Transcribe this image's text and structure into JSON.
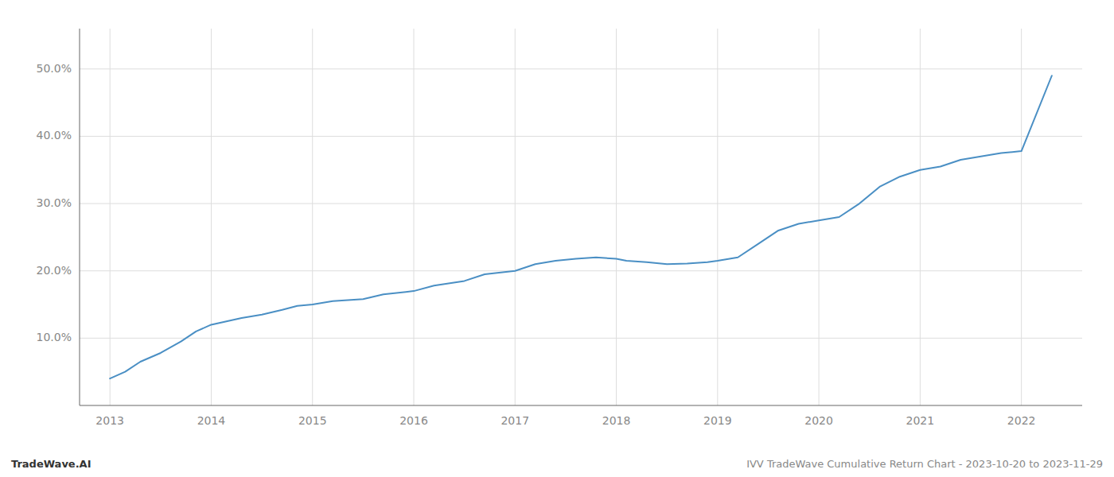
{
  "chart_data": {
    "type": "line",
    "title": "IVV TradeWave Cumulative Return Chart - 2023-10-20 to 2023-11-29",
    "annotations": [
      "TradeWave.AI"
    ],
    "color": "#4a8fc4",
    "x": [
      2013.0,
      2013.15,
      2013.3,
      2013.5,
      2013.7,
      2013.85,
      2014.0,
      2014.15,
      2014.3,
      2014.5,
      2014.7,
      2014.85,
      2015.0,
      2015.2,
      2015.5,
      2015.7,
      2016.0,
      2016.2,
      2016.5,
      2016.7,
      2017.0,
      2017.2,
      2017.4,
      2017.6,
      2017.8,
      2018.0,
      2018.1,
      2018.3,
      2018.5,
      2018.7,
      2018.9,
      2019.0,
      2019.2,
      2019.4,
      2019.6,
      2019.8,
      2020.0,
      2020.2,
      2020.4,
      2020.6,
      2020.8,
      2021.0,
      2021.2,
      2021.4,
      2021.6,
      2021.8,
      2022.0,
      2022.3
    ],
    "values": [
      4.0,
      5.0,
      6.5,
      7.8,
      9.5,
      11.0,
      12.0,
      12.5,
      13.0,
      13.5,
      14.2,
      14.8,
      15.0,
      15.5,
      15.8,
      16.5,
      17.0,
      17.8,
      18.5,
      19.5,
      20.0,
      21.0,
      21.5,
      21.8,
      22.0,
      21.8,
      21.5,
      21.3,
      21.0,
      21.1,
      21.3,
      21.5,
      22.0,
      24.0,
      26.0,
      27.0,
      27.5,
      28.0,
      30.0,
      32.5,
      34.0,
      35.0,
      35.5,
      36.5,
      37.0,
      37.5,
      37.8,
      49.0
    ],
    "xlim": [
      2012.7,
      2022.6
    ],
    "ylim": [
      0,
      56
    ],
    "xticks": [
      2013,
      2014,
      2015,
      2016,
      2017,
      2018,
      2019,
      2020,
      2021,
      2022
    ],
    "yticks": [
      {
        "value": 10.0,
        "label": "10.0%"
      },
      {
        "value": 20.0,
        "label": "20.0%"
      },
      {
        "value": 30.0,
        "label": "30.0%"
      },
      {
        "value": 40.0,
        "label": "40.0%"
      },
      {
        "value": 50.0,
        "label": "50.0%"
      }
    ],
    "grid": true
  }
}
